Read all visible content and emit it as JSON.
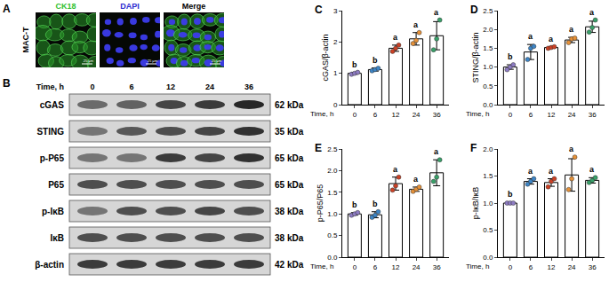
{
  "figure": {
    "A": {
      "panel": "A",
      "cell_line": "MAC-T",
      "scale_bar": "25 μm",
      "channels": [
        {
          "label": "CK18",
          "color": "#2fbf2f"
        },
        {
          "label": "DAPI",
          "color": "#2a2ad0"
        },
        {
          "label": "Merge",
          "color": "#000000"
        }
      ]
    },
    "B": {
      "panel": "B",
      "time_label": "Time, h",
      "lanes": [
        "0",
        "6",
        "12",
        "24",
        "36"
      ],
      "rows": [
        {
          "label": "cGAS",
          "size": "62 kDa"
        },
        {
          "label": "STING",
          "size": "35 kDa"
        },
        {
          "label": "p-P65",
          "size": "65 kDa"
        },
        {
          "label": "P65",
          "size": "65 kDa"
        },
        {
          "label": "p-IκB",
          "size": "38 kDa"
        },
        {
          "label": "IκB",
          "size": "38 kDa"
        },
        {
          "label": "β-actin",
          "size": "42 kDa"
        }
      ]
    }
  },
  "chart_data": [
    {
      "type": "bar",
      "panel": "C",
      "xlabel": "Time, h",
      "ylabel": "cGAS/β-actin",
      "categories": [
        "0",
        "6",
        "12",
        "24",
        "36"
      ],
      "values": [
        1.0,
        1.12,
        1.8,
        2.1,
        2.2
      ],
      "errors": [
        0.03,
        0.05,
        0.1,
        0.2,
        0.45
      ],
      "points": [
        [
          0.97,
          1.0,
          1.03
        ],
        [
          1.08,
          1.12,
          1.16
        ],
        [
          1.7,
          1.8,
          1.9
        ],
        [
          1.95,
          2.05,
          2.3
        ],
        [
          1.75,
          2.1,
          2.7
        ]
      ],
      "letters": [
        "b",
        "b",
        "a",
        "a",
        "a"
      ],
      "color": "#ffffff",
      "colors": [
        "#8e7cc3",
        "#3d85c6",
        "#cc4125",
        "#e69138",
        "#38a169"
      ],
      "ylim": [
        0,
        3
      ],
      "yticks": [
        0,
        1,
        2,
        3
      ],
      "grid": false
    },
    {
      "type": "bar",
      "panel": "D",
      "xlabel": "Time, h",
      "ylabel": "STING/β-actin",
      "categories": [
        "0",
        "6",
        "12",
        "24",
        "36"
      ],
      "values": [
        1.0,
        1.4,
        1.52,
        1.72,
        2.07
      ],
      "errors": [
        0.06,
        0.2,
        0.02,
        0.07,
        0.15
      ],
      "points": [
        [
          0.93,
          1.0,
          1.06
        ],
        [
          1.2,
          1.5,
          1.55
        ],
        [
          1.5,
          1.52,
          1.54
        ],
        [
          1.65,
          1.75,
          1.77
        ],
        [
          1.93,
          2.05,
          2.25
        ]
      ],
      "letters": [
        "b",
        "a",
        "a",
        "a",
        "a"
      ],
      "color": "#ffffff",
      "colors": [
        "#8e7cc3",
        "#3d85c6",
        "#cc4125",
        "#e69138",
        "#38a169"
      ],
      "ylim": [
        0,
        2.5
      ],
      "yticks": [
        {
          "value": 0,
          "label": "0.0"
        },
        {
          "value": 0.5,
          "label": "0.5"
        },
        {
          "value": 1,
          "label": "1.0"
        },
        {
          "value": 1.5,
          "label": "1.5"
        },
        {
          "value": 2,
          "label": "2.0"
        },
        {
          "value": 2.5,
          "label": "2.5"
        }
      ],
      "grid": false
    },
    {
      "type": "bar",
      "panel": "E",
      "xlabel": "Time, h",
      "ylabel": "p-P65/P65",
      "categories": [
        "0",
        "6",
        "12",
        "24",
        "36"
      ],
      "values": [
        1.0,
        0.98,
        1.7,
        1.57,
        1.95
      ],
      "errors": [
        0.03,
        0.07,
        0.15,
        0.05,
        0.3
      ],
      "points": [
        [
          0.97,
          1.0,
          1.03
        ],
        [
          0.92,
          0.97,
          1.05
        ],
        [
          1.55,
          1.65,
          1.85
        ],
        [
          1.52,
          1.57,
          1.62
        ],
        [
          1.75,
          1.85,
          2.25
        ]
      ],
      "letters": [
        "b",
        "b",
        "a",
        "a",
        "a"
      ],
      "color": "#ffffff",
      "colors": [
        "#8e7cc3",
        "#3d85c6",
        "#cc4125",
        "#e69138",
        "#38a169"
      ],
      "ylim": [
        0,
        2.5
      ],
      "yticks": [
        {
          "value": 0,
          "label": "0.0"
        },
        {
          "value": 0.5,
          "label": "0.5"
        },
        {
          "value": 1,
          "label": "1.0"
        },
        {
          "value": 1.5,
          "label": "1.5"
        },
        {
          "value": 2,
          "label": "2.0"
        },
        {
          "value": 2.5,
          "label": "2.5"
        }
      ],
      "grid": false
    },
    {
      "type": "bar",
      "panel": "F",
      "xlabel": "Time, h",
      "ylabel": "p-IκB/IκB",
      "categories": [
        "0",
        "6",
        "12",
        "24",
        "36"
      ],
      "values": [
        1.0,
        1.4,
        1.38,
        1.52,
        1.42
      ],
      "errors": [
        0.01,
        0.05,
        0.07,
        0.3,
        0.05
      ],
      "points": [
        [
          1.0,
          1.0,
          1.0
        ],
        [
          1.35,
          1.4,
          1.45
        ],
        [
          1.3,
          1.4,
          1.45
        ],
        [
          1.25,
          1.45,
          1.85
        ],
        [
          1.38,
          1.42,
          1.47
        ]
      ],
      "letters": [
        "b",
        "a",
        "a",
        "a",
        "a"
      ],
      "color": "#ffffff",
      "colors": [
        "#8e7cc3",
        "#3d85c6",
        "#cc4125",
        "#e69138",
        "#38a169"
      ],
      "ylim": [
        0,
        2
      ],
      "yticks": [
        {
          "value": 0,
          "label": "0.0"
        },
        {
          "value": 0.5,
          "label": "0.5"
        },
        {
          "value": 1,
          "label": "1.0"
        },
        {
          "value": 1.5,
          "label": "1.5"
        },
        {
          "value": 2,
          "label": "2.0"
        }
      ],
      "grid": false
    }
  ]
}
